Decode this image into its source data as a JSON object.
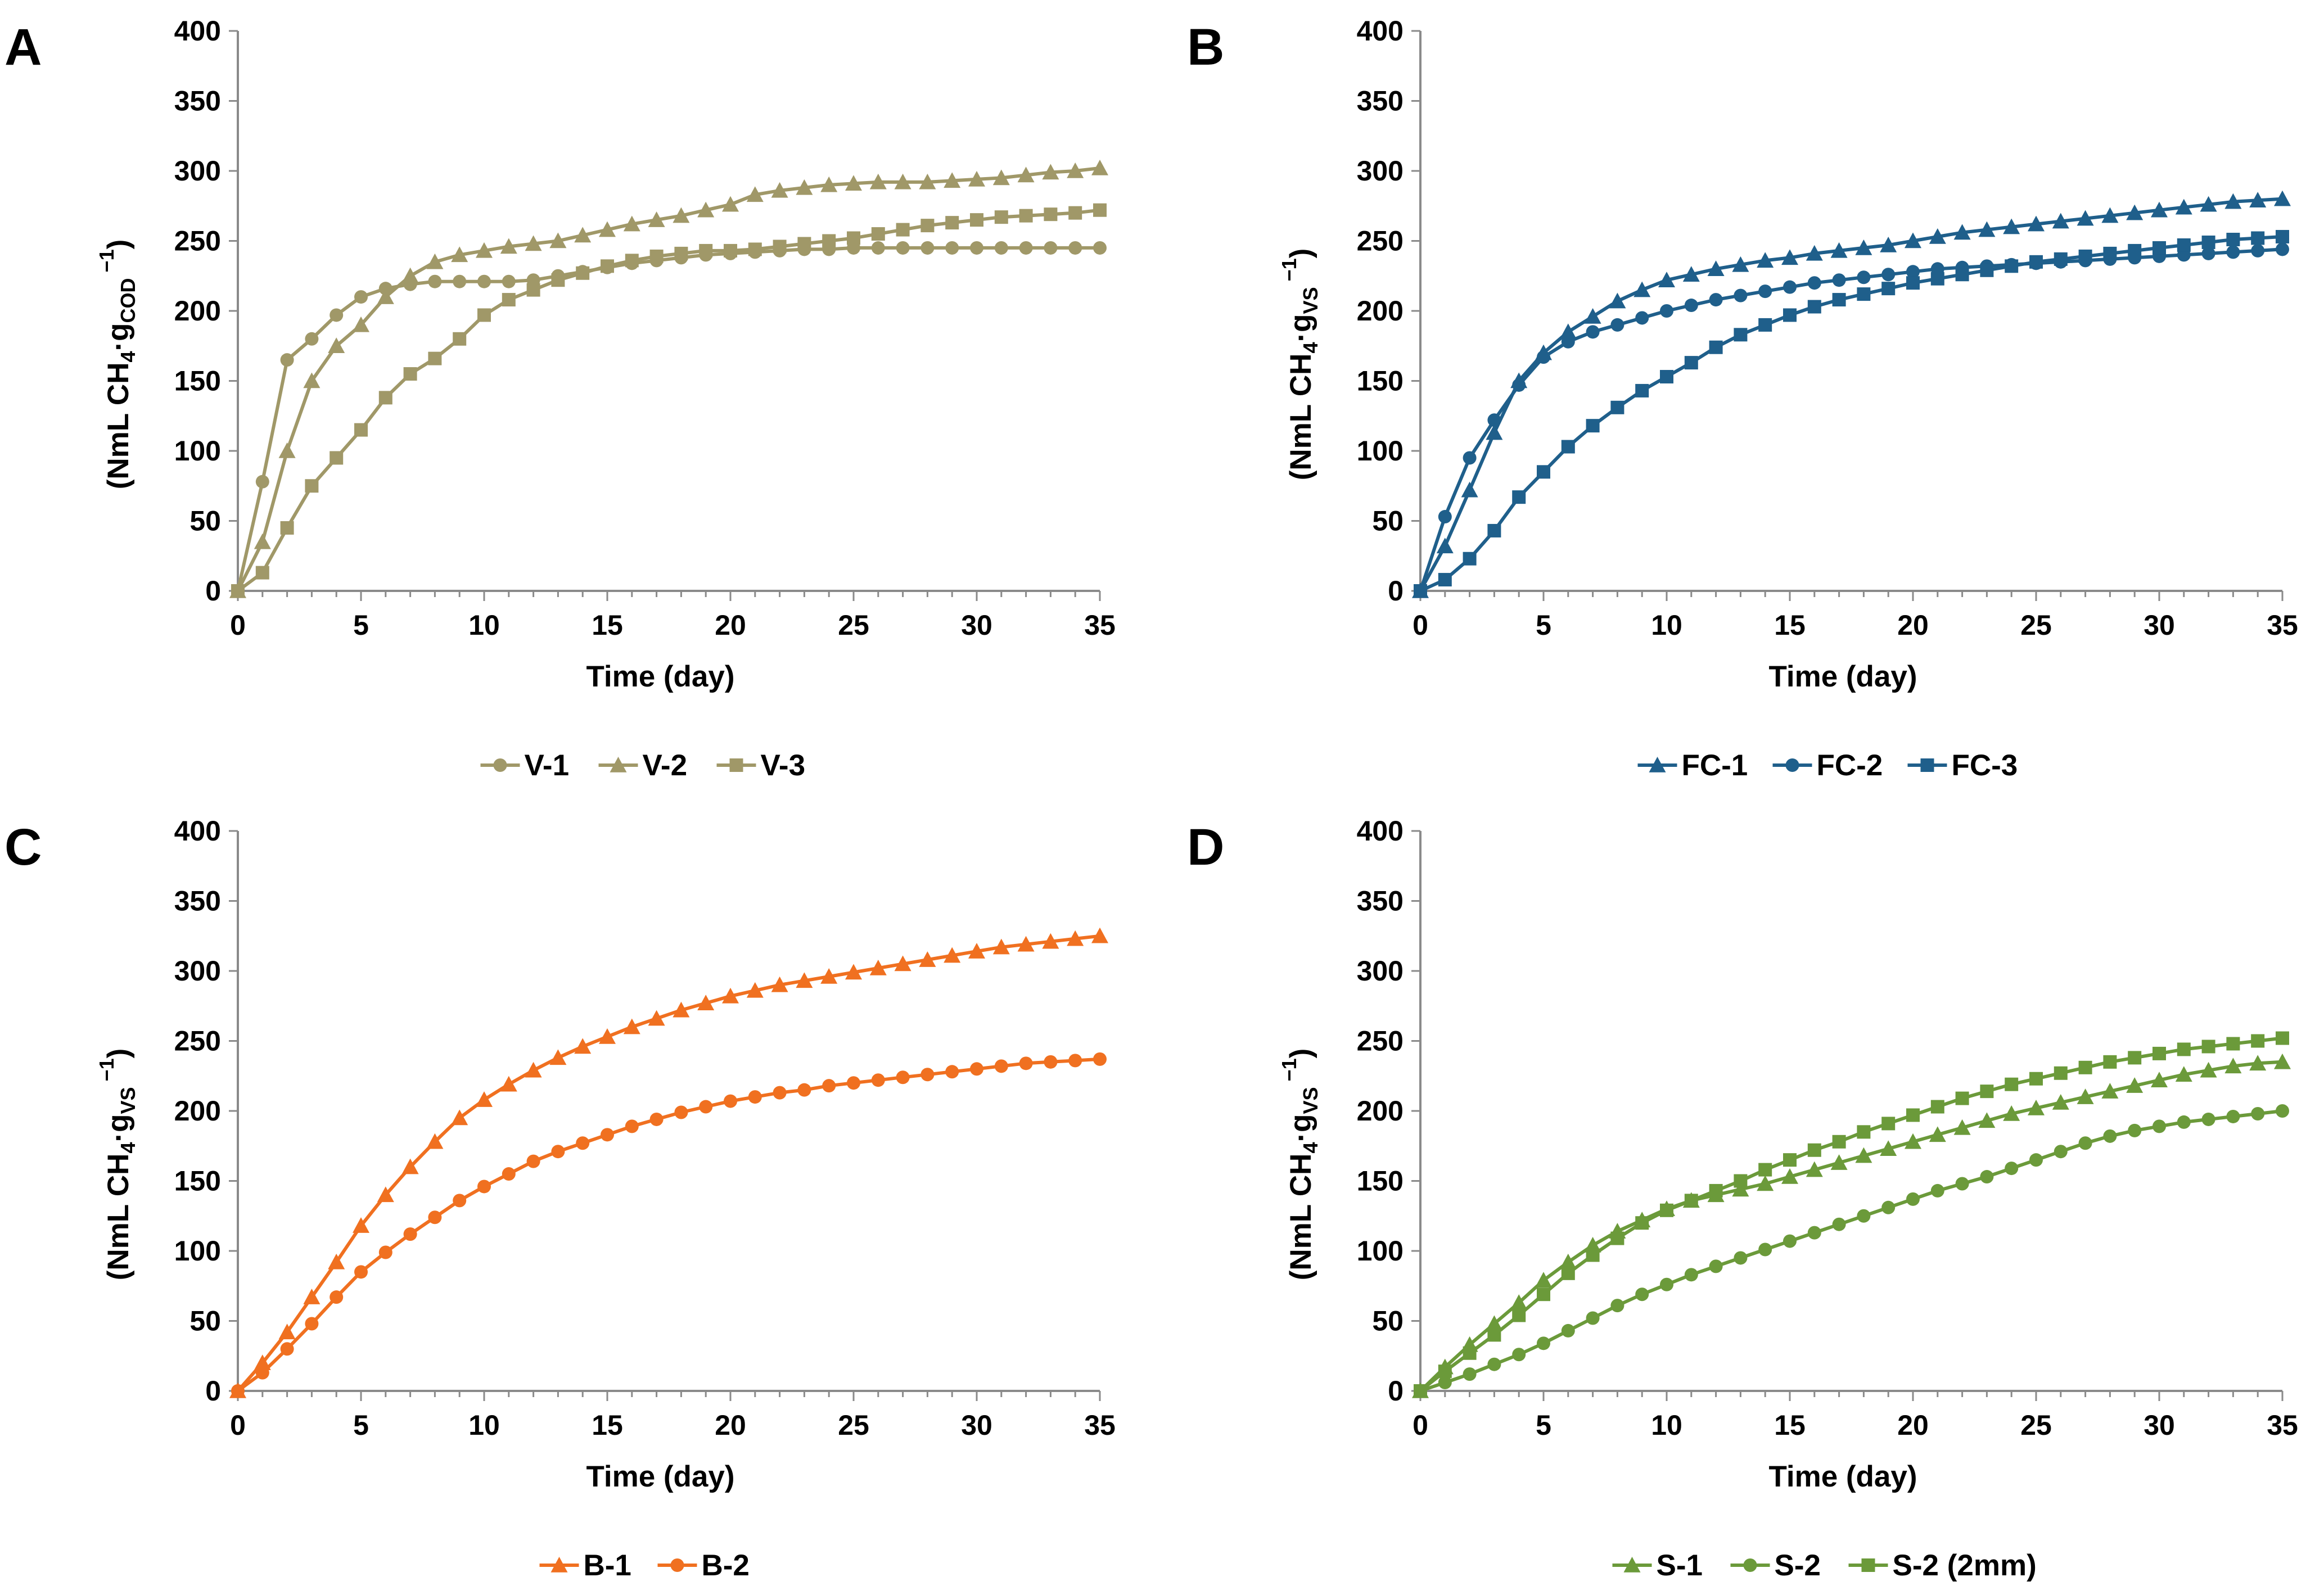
{
  "chart_data": [
    {
      "type": "line",
      "panel": "A",
      "title": "",
      "xlabel": "Time (day)",
      "ylabel": "(NmL CH4·gCOD−1)",
      "ylabel_parts": {
        "main": "(NmL CH",
        "sub1": "4",
        "mid": "·g",
        "sub2": "COD",
        "sup": " −1",
        "end": ")"
      },
      "xlim": [
        0,
        35
      ],
      "ylim": [
        0,
        400
      ],
      "xticks": [
        0,
        5,
        10,
        15,
        20,
        25,
        30,
        35
      ],
      "yticks": [
        0,
        50,
        100,
        150,
        200,
        250,
        300,
        350,
        400
      ],
      "x": [
        0,
        1,
        2,
        3,
        4,
        5,
        6,
        7,
        8,
        9,
        10,
        11,
        12,
        13,
        14,
        15,
        16,
        17,
        18,
        19,
        20,
        21,
        22,
        23,
        24,
        25,
        26,
        27,
        28,
        29,
        30,
        31,
        32,
        33,
        34,
        35
      ],
      "legend_position": "bottom",
      "series": [
        {
          "name": "V-1",
          "marker": "circle",
          "color": "#a09868",
          "values": [
            0,
            78,
            165,
            180,
            197,
            210,
            216,
            219,
            221,
            221,
            221,
            221,
            222,
            225,
            228,
            231,
            234,
            236,
            238,
            240,
            241,
            242,
            243,
            244,
            244,
            245,
            245,
            245,
            245,
            245,
            245,
            245,
            245,
            245,
            245,
            245
          ]
        },
        {
          "name": "V-2",
          "marker": "triangle",
          "color": "#a09868",
          "values": [
            0,
            35,
            100,
            150,
            175,
            190,
            210,
            225,
            235,
            240,
            243,
            246,
            248,
            250,
            254,
            258,
            262,
            265,
            268,
            272,
            276,
            283,
            286,
            288,
            290,
            291,
            292,
            292,
            292,
            293,
            294,
            295,
            297,
            299,
            300,
            302
          ]
        },
        {
          "name": "V-3",
          "marker": "square",
          "color": "#a09868",
          "values": [
            0,
            13,
            45,
            75,
            95,
            115,
            138,
            155,
            166,
            180,
            197,
            208,
            215,
            222,
            227,
            232,
            236,
            239,
            241,
            243,
            243,
            244,
            246,
            248,
            250,
            252,
            255,
            258,
            261,
            263,
            265,
            267,
            268,
            269,
            270,
            272
          ]
        }
      ]
    },
    {
      "type": "line",
      "panel": "B",
      "title": "",
      "xlabel": "Time (day)",
      "ylabel": "(NmL CH4·gVS−1)",
      "ylabel_parts": {
        "main": "(NmL CH",
        "sub1": "4",
        "mid": "·g",
        "sub2": "VS",
        "sup": " −1",
        "end": ")"
      },
      "xlim": [
        0,
        35
      ],
      "ylim": [
        0,
        400
      ],
      "xticks": [
        0,
        5,
        10,
        15,
        20,
        25,
        30,
        35
      ],
      "yticks": [
        0,
        50,
        100,
        150,
        200,
        250,
        300,
        350,
        400
      ],
      "x": [
        0,
        1,
        2,
        3,
        4,
        5,
        6,
        7,
        8,
        9,
        10,
        11,
        12,
        13,
        14,
        15,
        16,
        17,
        18,
        19,
        20,
        21,
        22,
        23,
        24,
        25,
        26,
        27,
        28,
        29,
        30,
        31,
        32,
        33,
        34,
        35
      ],
      "legend_position": "bottom",
      "series": [
        {
          "name": "FC-1",
          "marker": "triangle",
          "color": "#1f5f8b",
          "values": [
            0,
            32,
            72,
            113,
            150,
            170,
            185,
            196,
            207,
            215,
            222,
            226,
            230,
            233,
            236,
            238,
            241,
            243,
            245,
            247,
            250,
            253,
            256,
            258,
            260,
            262,
            264,
            266,
            268,
            270,
            272,
            274,
            276,
            278,
            279,
            280
          ]
        },
        {
          "name": "FC-2",
          "marker": "circle",
          "color": "#1f5f8b",
          "values": [
            0,
            53,
            95,
            122,
            147,
            167,
            178,
            185,
            190,
            195,
            200,
            204,
            208,
            211,
            214,
            217,
            220,
            222,
            224,
            226,
            228,
            230,
            231,
            232,
            233,
            234,
            235,
            236,
            237,
            238,
            239,
            240,
            241,
            242,
            243,
            244
          ]
        },
        {
          "name": "FC-3",
          "marker": "square",
          "color": "#1f5f8b",
          "values": [
            0,
            8,
            23,
            43,
            67,
            85,
            103,
            118,
            131,
            143,
            153,
            163,
            174,
            183,
            190,
            197,
            203,
            208,
            212,
            216,
            220,
            223,
            226,
            229,
            232,
            235,
            237,
            239,
            241,
            243,
            245,
            247,
            249,
            251,
            252,
            253
          ]
        }
      ]
    },
    {
      "type": "line",
      "panel": "C",
      "title": "",
      "xlabel": "Time (day)",
      "ylabel": "(NmL CH4·gVS−1)",
      "ylabel_parts": {
        "main": "(NmL CH",
        "sub1": "4",
        "mid": "·g",
        "sub2": "VS",
        "sup": " −1",
        "end": ")"
      },
      "xlim": [
        0,
        35
      ],
      "ylim": [
        0,
        400
      ],
      "xticks": [
        0,
        5,
        10,
        15,
        20,
        25,
        30,
        35
      ],
      "yticks": [
        0,
        50,
        100,
        150,
        200,
        250,
        300,
        350,
        400
      ],
      "x": [
        0,
        1,
        2,
        3,
        4,
        5,
        6,
        7,
        8,
        9,
        10,
        11,
        12,
        13,
        14,
        15,
        16,
        17,
        18,
        19,
        20,
        21,
        22,
        23,
        24,
        25,
        26,
        27,
        28,
        29,
        30,
        31,
        32,
        33,
        34,
        35
      ],
      "legend_position": "bottom",
      "series": [
        {
          "name": "B-1",
          "marker": "triangle",
          "color": "#f07020",
          "values": [
            0,
            20,
            42,
            67,
            92,
            118,
            140,
            160,
            178,
            195,
            208,
            219,
            229,
            238,
            246,
            253,
            260,
            266,
            272,
            277,
            282,
            286,
            290,
            293,
            296,
            299,
            302,
            305,
            308,
            311,
            314,
            317,
            319,
            321,
            323,
            325
          ]
        },
        {
          "name": "B-2",
          "marker": "circle",
          "color": "#f07020",
          "values": [
            0,
            13,
            30,
            48,
            67,
            85,
            99,
            112,
            124,
            136,
            146,
            155,
            164,
            171,
            177,
            183,
            189,
            194,
            199,
            203,
            207,
            210,
            213,
            215,
            218,
            220,
            222,
            224,
            226,
            228,
            230,
            232,
            234,
            235,
            236,
            237
          ]
        }
      ]
    },
    {
      "type": "line",
      "panel": "D",
      "title": "",
      "xlabel": "Time (day)",
      "ylabel": "(NmL CH4·gVS−1)",
      "ylabel_parts": {
        "main": "(NmL CH",
        "sub1": "4",
        "mid": "·g",
        "sub2": "VS",
        "sup": " −1",
        "end": ")"
      },
      "xlim": [
        0,
        35
      ],
      "ylim": [
        0,
        400
      ],
      "xticks": [
        0,
        5,
        10,
        15,
        20,
        25,
        30,
        35
      ],
      "yticks": [
        0,
        50,
        100,
        150,
        200,
        250,
        300,
        350,
        400
      ],
      "x": [
        0,
        1,
        2,
        3,
        4,
        5,
        6,
        7,
        8,
        9,
        10,
        11,
        12,
        13,
        14,
        15,
        16,
        17,
        18,
        19,
        20,
        21,
        22,
        23,
        24,
        25,
        26,
        27,
        28,
        29,
        30,
        31,
        32,
        33,
        34,
        35
      ],
      "legend_position": "bottom",
      "series": [
        {
          "name": "S-1",
          "marker": "triangle",
          "color": "#6b9a3a",
          "values": [
            0,
            17,
            33,
            48,
            63,
            79,
            92,
            104,
            114,
            122,
            130,
            136,
            140,
            144,
            148,
            153,
            158,
            163,
            168,
            173,
            178,
            183,
            188,
            193,
            198,
            202,
            206,
            210,
            214,
            218,
            222,
            226,
            229,
            232,
            234,
            235
          ]
        },
        {
          "name": "S-2",
          "marker": "circle",
          "color": "#6b9a3a",
          "values": [
            0,
            6,
            12,
            19,
            26,
            34,
            43,
            52,
            61,
            69,
            76,
            83,
            89,
            95,
            101,
            107,
            113,
            119,
            125,
            131,
            137,
            143,
            148,
            153,
            159,
            165,
            171,
            177,
            182,
            186,
            189,
            192,
            194,
            196,
            198,
            200
          ]
        },
        {
          "name": "S-2 (2mm)",
          "marker": "square",
          "color": "#6b9a3a",
          "values": [
            0,
            14,
            27,
            40,
            54,
            69,
            84,
            97,
            109,
            120,
            129,
            136,
            143,
            150,
            158,
            165,
            172,
            178,
            185,
            191,
            197,
            203,
            209,
            214,
            219,
            223,
            227,
            231,
            235,
            238,
            241,
            244,
            246,
            248,
            250,
            252
          ]
        }
      ]
    }
  ]
}
